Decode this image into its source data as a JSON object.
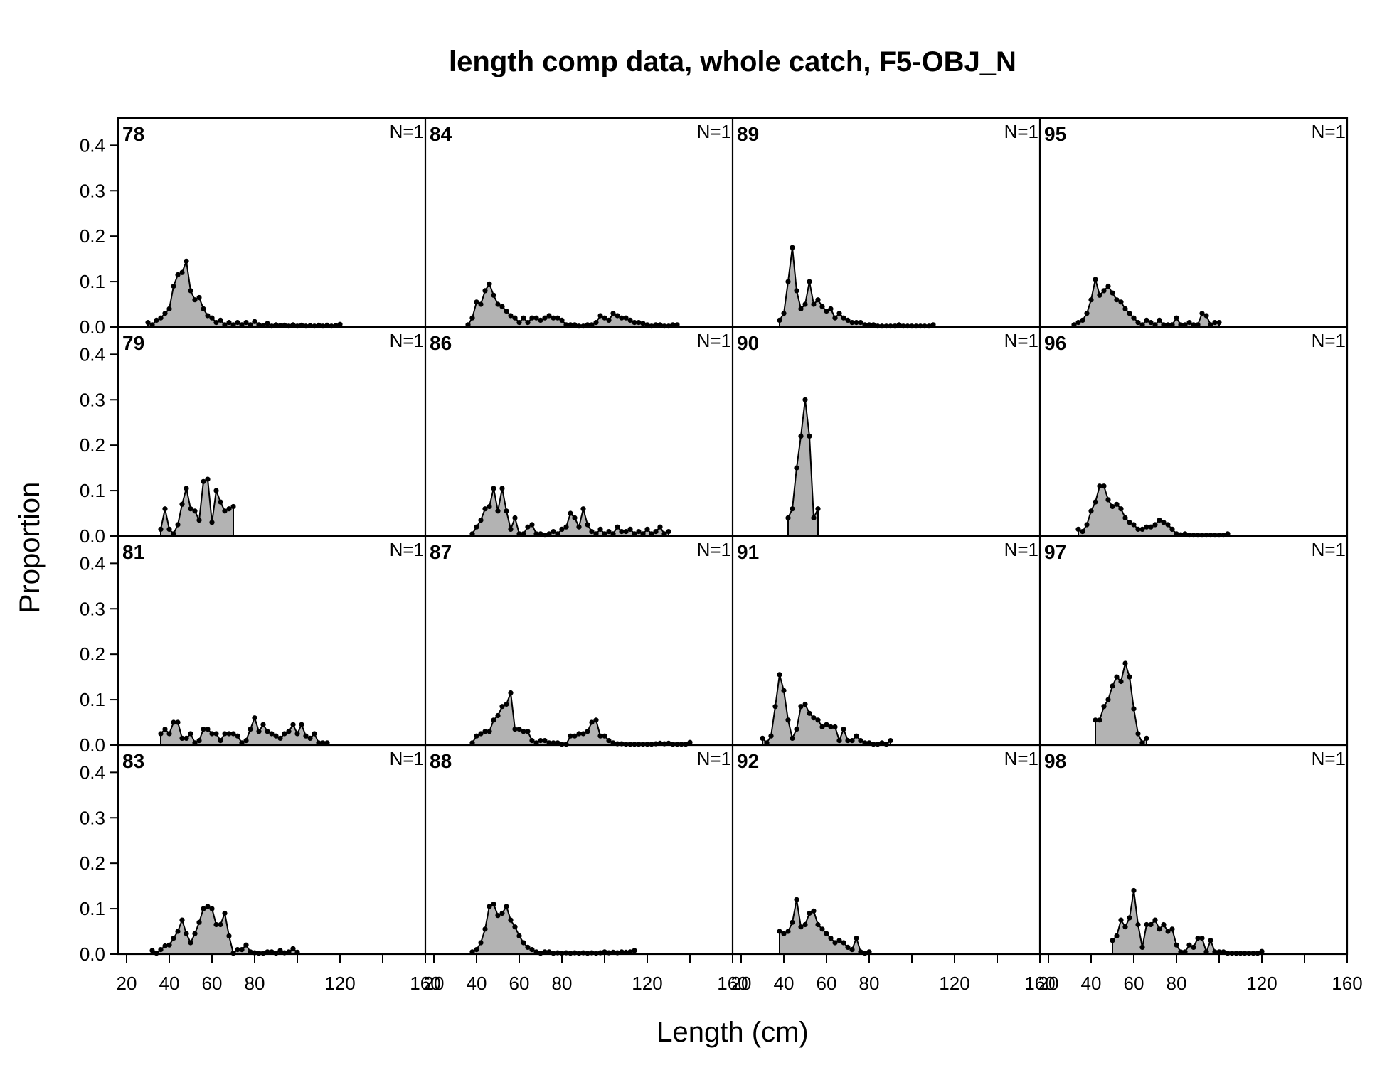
{
  "chart_data": {
    "type": "area",
    "title": "length comp data, whole catch, F5-OBJ_N",
    "xlabel": "Length (cm)",
    "ylabel": "Proportion",
    "xlim": [
      16,
      160
    ],
    "ylim": [
      0,
      0.46
    ],
    "x_ticks": [
      20,
      40,
      60,
      80,
      120,
      160
    ],
    "x_minor_ticks": [
      20,
      40,
      60,
      80,
      100,
      120,
      140,
      160
    ],
    "y_ticks": [
      "0.0",
      "0.1",
      "0.2",
      "0.3",
      "0.4"
    ],
    "layout": "4x4 grid, panels ordered down columns",
    "grid": false,
    "fill_color": "#b3b3b3",
    "line_color": "#000000",
    "panels": [
      {
        "label": "78",
        "n_label": "N=1",
        "x": [
          30,
          32,
          34,
          36,
          38,
          40,
          42,
          44,
          46,
          48,
          50,
          52,
          54,
          56,
          58,
          60,
          62,
          64,
          66,
          68,
          70,
          72,
          74,
          76,
          78,
          80,
          82,
          84,
          86,
          88,
          90,
          92,
          94,
          96,
          98,
          100,
          102,
          104,
          106,
          108,
          110,
          112,
          114,
          116,
          118,
          120
        ],
        "y": [
          0.01,
          0.005,
          0.015,
          0.02,
          0.03,
          0.04,
          0.09,
          0.115,
          0.12,
          0.145,
          0.08,
          0.06,
          0.065,
          0.04,
          0.025,
          0.02,
          0.01,
          0.015,
          0.005,
          0.01,
          0.005,
          0.01,
          0.005,
          0.01,
          0.005,
          0.012,
          0.005,
          0.003,
          0.008,
          0.002,
          0.005,
          0.003,
          0.004,
          0.002,
          0.005,
          0.002,
          0.004,
          0.002,
          0.003,
          0.002,
          0.004,
          0.002,
          0.004,
          0.002,
          0.003,
          0.006
        ]
      },
      {
        "label": "79",
        "n_label": "N=1",
        "x": [
          36,
          38,
          40,
          42,
          44,
          46,
          48,
          50,
          52,
          54,
          56,
          58,
          60,
          62,
          64,
          66,
          68,
          70
        ],
        "y": [
          0.015,
          0.06,
          0.015,
          0.005,
          0.025,
          0.07,
          0.105,
          0.06,
          0.055,
          0.035,
          0.12,
          0.125,
          0.03,
          0.1,
          0.075,
          0.055,
          0.06,
          0.065
        ]
      },
      {
        "label": "81",
        "n_label": "N=1",
        "x": [
          36,
          38,
          40,
          42,
          44,
          46,
          48,
          50,
          52,
          54,
          56,
          58,
          60,
          62,
          64,
          66,
          68,
          70,
          72,
          74,
          76,
          78,
          80,
          82,
          84,
          86,
          88,
          90,
          92,
          94,
          96,
          98,
          100,
          102,
          104,
          106,
          108,
          110,
          112,
          114
        ],
        "y": [
          0.025,
          0.035,
          0.025,
          0.05,
          0.05,
          0.015,
          0.015,
          0.025,
          0.005,
          0.01,
          0.035,
          0.035,
          0.025,
          0.025,
          0.01,
          0.025,
          0.025,
          0.025,
          0.02,
          0.005,
          0.01,
          0.035,
          0.06,
          0.03,
          0.045,
          0.03,
          0.025,
          0.02,
          0.015,
          0.025,
          0.03,
          0.045,
          0.025,
          0.045,
          0.02,
          0.015,
          0.025,
          0.005,
          0.005,
          0.005
        ]
      },
      {
        "label": "83",
        "n_label": "N=1",
        "x": [
          32,
          34,
          36,
          38,
          40,
          42,
          44,
          46,
          48,
          50,
          52,
          54,
          56,
          58,
          60,
          62,
          64,
          66,
          68,
          70,
          72,
          74,
          76,
          78,
          80,
          82,
          84,
          86,
          88,
          90,
          92,
          94,
          96,
          98,
          100
        ],
        "y": [
          0.008,
          0.002,
          0.01,
          0.018,
          0.02,
          0.035,
          0.05,
          0.075,
          0.045,
          0.025,
          0.045,
          0.07,
          0.1,
          0.105,
          0.1,
          0.065,
          0.065,
          0.09,
          0.04,
          0.002,
          0.01,
          0.01,
          0.02,
          0.005,
          0.003,
          0.002,
          0.002,
          0.005,
          0.005,
          0.002,
          0.008,
          0.003,
          0.005,
          0.012,
          0.004
        ]
      },
      {
        "label": "84",
        "n_label": "N=1",
        "x": [
          36,
          38,
          40,
          42,
          44,
          46,
          48,
          50,
          52,
          54,
          56,
          58,
          60,
          62,
          64,
          66,
          68,
          70,
          72,
          74,
          76,
          78,
          80,
          82,
          84,
          86,
          88,
          90,
          92,
          94,
          96,
          98,
          100,
          102,
          104,
          106,
          108,
          110,
          112,
          114,
          116,
          118,
          120,
          122,
          124,
          126,
          128,
          130,
          132,
          134
        ],
        "y": [
          0.005,
          0.02,
          0.055,
          0.05,
          0.08,
          0.095,
          0.07,
          0.05,
          0.045,
          0.035,
          0.025,
          0.02,
          0.01,
          0.02,
          0.01,
          0.02,
          0.02,
          0.015,
          0.02,
          0.025,
          0.02,
          0.02,
          0.015,
          0.005,
          0.005,
          0.005,
          0.002,
          0.002,
          0.005,
          0.005,
          0.01,
          0.025,
          0.02,
          0.015,
          0.03,
          0.025,
          0.02,
          0.02,
          0.015,
          0.01,
          0.01,
          0.008,
          0.005,
          0.002,
          0.005,
          0.005,
          0.002,
          0.002,
          0.005,
          0.005
        ]
      },
      {
        "label": "86",
        "n_label": "N=1",
        "x": [
          38,
          40,
          42,
          44,
          46,
          48,
          50,
          52,
          54,
          56,
          58,
          60,
          62,
          64,
          66,
          68,
          70,
          72,
          74,
          76,
          78,
          80,
          82,
          84,
          86,
          88,
          90,
          92,
          94,
          96,
          98,
          100,
          102,
          104,
          106,
          108,
          110,
          112,
          114,
          116,
          118,
          120,
          122,
          124,
          126,
          128,
          130
        ],
        "y": [
          0.005,
          0.02,
          0.035,
          0.06,
          0.065,
          0.105,
          0.055,
          0.105,
          0.055,
          0.015,
          0.04,
          0.005,
          0.005,
          0.02,
          0.025,
          0.005,
          0.005,
          0.002,
          0.005,
          0.01,
          0.005,
          0.015,
          0.02,
          0.05,
          0.04,
          0.02,
          0.06,
          0.025,
          0.01,
          0.005,
          0.015,
          0.005,
          0.01,
          0.005,
          0.02,
          0.01,
          0.01,
          0.015,
          0.005,
          0.01,
          0.005,
          0.015,
          0.005,
          0.01,
          0.02,
          0.005,
          0.01
        ]
      },
      {
        "label": "87",
        "n_label": "N=1",
        "x": [
          38,
          40,
          42,
          44,
          46,
          48,
          50,
          52,
          54,
          56,
          58,
          60,
          62,
          64,
          66,
          68,
          70,
          72,
          74,
          76,
          78,
          80,
          82,
          84,
          86,
          88,
          90,
          92,
          94,
          96,
          98,
          100,
          102,
          104,
          106,
          108,
          110,
          112,
          114,
          116,
          118,
          120,
          122,
          124,
          126,
          128,
          130,
          132,
          134,
          136,
          138,
          140
        ],
        "y": [
          0.005,
          0.02,
          0.025,
          0.03,
          0.03,
          0.055,
          0.065,
          0.085,
          0.09,
          0.115,
          0.035,
          0.035,
          0.03,
          0.03,
          0.01,
          0.005,
          0.01,
          0.01,
          0.005,
          0.005,
          0.005,
          0.002,
          0.002,
          0.02,
          0.02,
          0.025,
          0.025,
          0.03,
          0.05,
          0.055,
          0.02,
          0.02,
          0.01,
          0.005,
          0.003,
          0.003,
          0.002,
          0.002,
          0.002,
          0.002,
          0.002,
          0.002,
          0.002,
          0.003,
          0.004,
          0.003,
          0.004,
          0.002,
          0.002,
          0.002,
          0.002,
          0.006
        ]
      },
      {
        "label": "88",
        "n_label": "N=1",
        "x": [
          38,
          40,
          42,
          44,
          46,
          48,
          50,
          52,
          54,
          56,
          58,
          60,
          62,
          64,
          66,
          68,
          70,
          72,
          74,
          76,
          78,
          80,
          82,
          84,
          86,
          88,
          90,
          92,
          94,
          96,
          98,
          100,
          102,
          104,
          106,
          108,
          110,
          112,
          114
        ],
        "y": [
          0.005,
          0.01,
          0.025,
          0.055,
          0.105,
          0.11,
          0.085,
          0.09,
          0.105,
          0.075,
          0.06,
          0.04,
          0.025,
          0.015,
          0.01,
          0.005,
          0.002,
          0.005,
          0.005,
          0.002,
          0.003,
          0.002,
          0.003,
          0.002,
          0.003,
          0.002,
          0.003,
          0.002,
          0.003,
          0.002,
          0.003,
          0.005,
          0.003,
          0.004,
          0.003,
          0.005,
          0.004,
          0.005,
          0.008
        ]
      },
      {
        "label": "89",
        "n_label": "N=1",
        "x": [
          38,
          40,
          42,
          44,
          46,
          48,
          50,
          52,
          54,
          56,
          58,
          60,
          62,
          64,
          66,
          68,
          70,
          72,
          74,
          76,
          78,
          80,
          82,
          84,
          86,
          88,
          90,
          92,
          94,
          96,
          98,
          100,
          102,
          104,
          106,
          108,
          110
        ],
        "y": [
          0.015,
          0.03,
          0.1,
          0.175,
          0.08,
          0.04,
          0.05,
          0.1,
          0.05,
          0.06,
          0.045,
          0.035,
          0.04,
          0.02,
          0.03,
          0.02,
          0.015,
          0.01,
          0.01,
          0.01,
          0.005,
          0.005,
          0.005,
          0.002,
          0.002,
          0.002,
          0.002,
          0.002,
          0.005,
          0.002,
          0.002,
          0.002,
          0.002,
          0.002,
          0.002,
          0.002,
          0.005
        ]
      },
      {
        "label": "90",
        "n_label": "N=1",
        "x": [
          42,
          44,
          46,
          48,
          50,
          52,
          54,
          56
        ],
        "y": [
          0.04,
          0.06,
          0.15,
          0.22,
          0.3,
          0.22,
          0.04,
          0.06
        ]
      },
      {
        "label": "91",
        "n_label": "N=1",
        "x": [
          30,
          32,
          34,
          36,
          38,
          40,
          42,
          44,
          46,
          48,
          50,
          52,
          54,
          56,
          58,
          60,
          62,
          64,
          66,
          68,
          70,
          72,
          74,
          76,
          78,
          80,
          82,
          84,
          86,
          88,
          90
        ],
        "y": [
          0.015,
          0.005,
          0.02,
          0.085,
          0.155,
          0.12,
          0.055,
          0.015,
          0.035,
          0.085,
          0.09,
          0.07,
          0.06,
          0.055,
          0.04,
          0.045,
          0.04,
          0.04,
          0.01,
          0.035,
          0.01,
          0.01,
          0.02,
          0.01,
          0.005,
          0.005,
          0.002,
          0.002,
          0.005,
          0.002,
          0.01
        ]
      },
      {
        "label": "92",
        "n_label": "N=1",
        "x": [
          38,
          40,
          42,
          44,
          46,
          48,
          50,
          52,
          54,
          56,
          58,
          60,
          62,
          64,
          66,
          68,
          70,
          72,
          74,
          76,
          78,
          80
        ],
        "y": [
          0.05,
          0.045,
          0.05,
          0.07,
          0.12,
          0.06,
          0.065,
          0.09,
          0.095,
          0.065,
          0.055,
          0.045,
          0.035,
          0.025,
          0.03,
          0.025,
          0.015,
          0.01,
          0.035,
          0.005,
          0.002,
          0.005
        ]
      },
      {
        "label": "95",
        "n_label": "N=1",
        "x": [
          32,
          34,
          36,
          38,
          40,
          42,
          44,
          46,
          48,
          50,
          52,
          54,
          56,
          58,
          60,
          62,
          64,
          66,
          68,
          70,
          72,
          74,
          76,
          78,
          80,
          82,
          84,
          86,
          88,
          90,
          92,
          94,
          96,
          98,
          100
        ],
        "y": [
          0.005,
          0.01,
          0.015,
          0.03,
          0.06,
          0.105,
          0.07,
          0.08,
          0.09,
          0.075,
          0.06,
          0.055,
          0.04,
          0.03,
          0.02,
          0.01,
          0.005,
          0.015,
          0.01,
          0.005,
          0.015,
          0.005,
          0.005,
          0.005,
          0.02,
          0.005,
          0.005,
          0.01,
          0.005,
          0.005,
          0.03,
          0.025,
          0.005,
          0.01,
          0.01
        ]
      },
      {
        "label": "96",
        "n_label": "N=1",
        "x": [
          34,
          36,
          38,
          40,
          42,
          44,
          46,
          48,
          50,
          52,
          54,
          56,
          58,
          60,
          62,
          64,
          66,
          68,
          70,
          72,
          74,
          76,
          78,
          80,
          82,
          84,
          86,
          88,
          90,
          92,
          94,
          96,
          98,
          100,
          102,
          104
        ],
        "y": [
          0.015,
          0.01,
          0.025,
          0.055,
          0.075,
          0.11,
          0.11,
          0.08,
          0.065,
          0.07,
          0.06,
          0.04,
          0.03,
          0.025,
          0.015,
          0.015,
          0.02,
          0.02,
          0.025,
          0.035,
          0.03,
          0.025,
          0.015,
          0.005,
          0.003,
          0.005,
          0.002,
          0.002,
          0.002,
          0.002,
          0.002,
          0.002,
          0.002,
          0.002,
          0.002,
          0.005
        ]
      },
      {
        "label": "97",
        "n_label": "N=1",
        "x": [
          42,
          44,
          46,
          48,
          50,
          52,
          54,
          56,
          58,
          60,
          62,
          64,
          66
        ],
        "y": [
          0.055,
          0.055,
          0.085,
          0.1,
          0.13,
          0.15,
          0.14,
          0.18,
          0.15,
          0.08,
          0.025,
          0.005,
          0.015
        ]
      },
      {
        "label": "98",
        "n_label": "N=1",
        "x": [
          50,
          52,
          54,
          56,
          58,
          60,
          62,
          64,
          66,
          68,
          70,
          72,
          74,
          76,
          78,
          80,
          82,
          84,
          86,
          88,
          90,
          92,
          94,
          96,
          98,
          100,
          102,
          104,
          106,
          108,
          110,
          112,
          114,
          116,
          118,
          120
        ],
        "y": [
          0.03,
          0.04,
          0.075,
          0.06,
          0.08,
          0.14,
          0.065,
          0.015,
          0.065,
          0.065,
          0.075,
          0.055,
          0.065,
          0.05,
          0.055,
          0.02,
          0.005,
          0.005,
          0.02,
          0.015,
          0.035,
          0.035,
          0.005,
          0.03,
          0.005,
          0.005,
          0.005,
          0.002,
          0.002,
          0.002,
          0.002,
          0.002,
          0.002,
          0.002,
          0.002,
          0.006
        ]
      }
    ]
  }
}
